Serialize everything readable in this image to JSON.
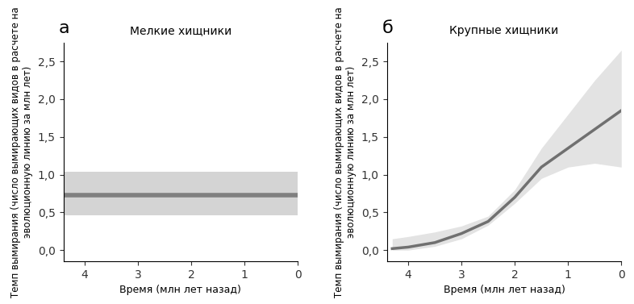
{
  "chart_data": [
    {
      "type": "line",
      "panel": "а",
      "title": "Мелкие хищники",
      "xlabel": "Время (млн лет назад)",
      "ylabel": "Темп вымирания (число вымирающих видов в расчете на эволюционную линию за млн лет)",
      "x": [
        4.4,
        0
      ],
      "series": [
        {
          "color": "#808080",
          "band_color": "#d4d4d4",
          "values": [
            0.73,
            0.73
          ],
          "lower": [
            0.46,
            0.46
          ],
          "upper": [
            1.04,
            1.04
          ]
        }
      ],
      "xlim": [
        4.4,
        0
      ],
      "xticks": [
        4,
        3,
        2,
        1,
        0
      ],
      "ylim": [
        -0.15,
        2.75
      ],
      "yticks": [
        {
          "value": 0.0,
          "label": "0,0"
        },
        {
          "value": 0.5,
          "label": "0,5"
        },
        {
          "value": 1.0,
          "label": "1,0"
        },
        {
          "value": 1.5,
          "label": "1,5"
        },
        {
          "value": 2.0,
          "label": "2,0"
        },
        {
          "value": 2.5,
          "label": "2,5"
        }
      ],
      "grid": false
    },
    {
      "type": "line",
      "panel": "б",
      "title": "Крупные хищники",
      "xlabel": "Время (млн лет назад)",
      "ylabel": "Темп вымирания (число вымирающих видов в расчете на эволюционную линию за млн лет)",
      "x": [
        4.3,
        4.0,
        3.5,
        3.0,
        2.5,
        2.0,
        1.5,
        1.0,
        0.5,
        0.0
      ],
      "series": [
        {
          "color": "#707070",
          "band_color": "#e3e3e3",
          "values": [
            0.02,
            0.04,
            0.1,
            0.22,
            0.38,
            0.7,
            1.1,
            1.35,
            1.6,
            1.85
          ],
          "lower": [
            0.0,
            0.0,
            0.05,
            0.15,
            0.33,
            0.62,
            0.95,
            1.1,
            1.15,
            1.1
          ],
          "upper": [
            0.15,
            0.18,
            0.24,
            0.32,
            0.45,
            0.8,
            1.35,
            1.8,
            2.25,
            2.65
          ]
        }
      ],
      "xlim": [
        4.4,
        0
      ],
      "xticks": [
        4,
        3,
        2,
        1,
        0
      ],
      "ylim": [
        -0.15,
        2.75
      ],
      "yticks": [
        {
          "value": 0.0,
          "label": "0,0"
        },
        {
          "value": 0.5,
          "label": "0,5"
        },
        {
          "value": 1.0,
          "label": "1,0"
        },
        {
          "value": 1.5,
          "label": "1,5"
        },
        {
          "value": 2.0,
          "label": "2,0"
        },
        {
          "value": 2.5,
          "label": "2,5"
        }
      ],
      "grid": false
    }
  ]
}
